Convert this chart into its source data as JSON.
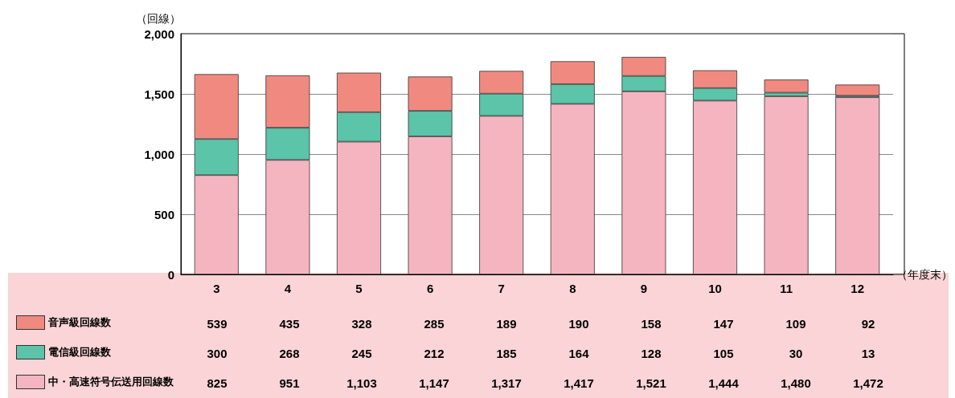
{
  "chart_data": {
    "type": "bar",
    "stacked": true,
    "ylabel": "（回線）",
    "xlabel": "（年度末）",
    "categories": [
      "3",
      "4",
      "5",
      "6",
      "7",
      "8",
      "9",
      "10",
      "11",
      "12"
    ],
    "series": [
      {
        "name": "中・高速符号伝送用回線数",
        "color": "#f5b5c0",
        "values": [
          825,
          951,
          1103,
          1147,
          1317,
          1417,
          1521,
          1444,
          1480,
          1472
        ],
        "value_labels": [
          "825",
          "951",
          "1,103",
          "1,147",
          "1,317",
          "1,417",
          "1,521",
          "1,444",
          "1,480",
          "1,472"
        ]
      },
      {
        "name": "電信級回線数",
        "color": "#5cc4a8",
        "values": [
          300,
          268,
          245,
          212,
          185,
          164,
          128,
          105,
          30,
          13
        ],
        "value_labels": [
          "300",
          "268",
          "245",
          "212",
          "185",
          "164",
          "128",
          "105",
          "30",
          "13"
        ]
      },
      {
        "name": "音声級回線数",
        "color": "#f08a80",
        "values": [
          539,
          435,
          328,
          285,
          189,
          190,
          158,
          147,
          109,
          92
        ],
        "value_labels": [
          "539",
          "435",
          "328",
          "285",
          "189",
          "190",
          "158",
          "147",
          "109",
          "92"
        ]
      }
    ],
    "ylim": [
      0,
      2000
    ],
    "yticks": [
      0,
      500,
      {
        "value": 1000,
        "label": "1,000"
      },
      {
        "value": 1500,
        "label": "1,500"
      },
      {
        "value": 2000,
        "label": "2,000"
      }
    ],
    "grid": "y",
    "legend": "bottom left"
  }
}
